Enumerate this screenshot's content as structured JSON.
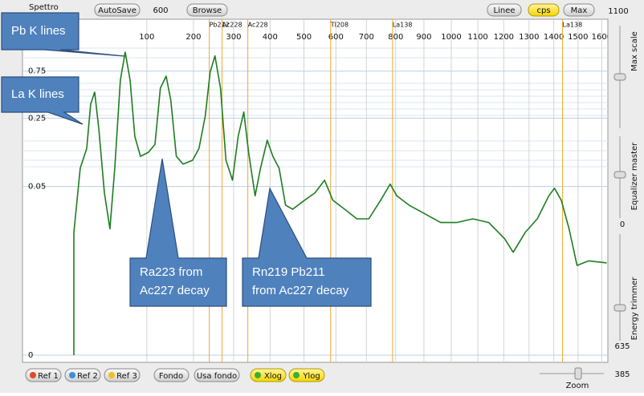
{
  "toolbar": {
    "title": "Spettro",
    "autosave": "AutoSave",
    "autosave_value": "600",
    "browse": "Browse",
    "lines": "Linee",
    "cps": "cps",
    "max": "Max",
    "max_value": "1100"
  },
  "bottom_bar": {
    "ref1": "Ref 1",
    "ref2": "Ref 2",
    "ref3": "Ref 3",
    "fondo": "Fondo",
    "usa_fondo": "Usa fondo",
    "xlog": "Xlog",
    "ylog": "Ylog",
    "zoom_value": "385",
    "zoom": "Zoom"
  },
  "side_panel": {
    "max_scale": "Max scale",
    "equalizer": "Equalizer master",
    "equalizer_value": "0",
    "energy_trimmer": "Energy trimmer",
    "trimmer_value": "635"
  },
  "callouts": [
    {
      "lines": [
        "Pb K lines"
      ]
    },
    {
      "lines": [
        "La K lines"
      ]
    },
    {
      "lines": [
        "Ra223 from",
        "Ac227 decay"
      ]
    },
    {
      "lines": [
        "Rn219 Pb211",
        "from Ac227 decay"
      ]
    }
  ],
  "chart_data": {
    "type": "line",
    "color": "#1e7d1e",
    "x": [
      0,
      0,
      3.3,
      8.8,
      12.8,
      17.3,
      22.2,
      29.5,
      37.3,
      44.5,
      53.3,
      61.1,
      69.4,
      77.8,
      88,
      103,
      116,
      127,
      139,
      149,
      161,
      176,
      198,
      213,
      228,
      240,
      252,
      266,
      280,
      297,
      312,
      327,
      340,
      358,
      373,
      392,
      408,
      426,
      445,
      466,
      502,
      534,
      564,
      590,
      628,
      668,
      708,
      748,
      781,
      804,
      847,
      903,
      961,
      1020,
      1081,
      1142,
      1204,
      1237,
      1285,
      1333,
      1380,
      1403,
      1431,
      1463,
      1496,
      1545,
      1621
    ],
    "values": [
      0,
      0.0165,
      0.077,
      0.123,
      0.346,
      0.459,
      0.197,
      0.043,
      0.018,
      0.077,
      0.608,
      1.17,
      0.608,
      0.163,
      0.102,
      0.112,
      0.135,
      0.504,
      0.667,
      0.38,
      0.102,
      0.085,
      0.093,
      0.123,
      0.262,
      0.732,
      1.07,
      0.504,
      0.093,
      0.058,
      0.163,
      0.288,
      0.112,
      0.04,
      0.077,
      0.149,
      0.102,
      0.077,
      0.032,
      0.029,
      0.036,
      0.043,
      0.058,
      0.036,
      0.029,
      0.023,
      0.023,
      0.036,
      0.053,
      0.04,
      0.032,
      0.026,
      0.021,
      0.021,
      0.023,
      0.021,
      0.014,
      0.01,
      0.0165,
      0.023,
      0.04,
      0.048,
      0.036,
      0.018,
      0.0071,
      0.008,
      0.0076
    ],
    "xlim": [
      0,
      1650
    ],
    "xticks": [
      100,
      200,
      300,
      400,
      500,
      600,
      700,
      800,
      900,
      1000,
      1100,
      1200,
      1300,
      1400,
      1500,
      1600
    ],
    "ylim": [
      0,
      2.47
    ],
    "yticks": [
      0,
      0.05,
      0.25,
      0.75
    ],
    "grid": true,
    "markers": [
      {
        "label": "Pb212",
        "x": 238
      },
      {
        "label": "Ac228",
        "x": 270
      },
      {
        "label": "Ac228",
        "x": 338
      },
      {
        "label": "Tl208",
        "x": 583
      },
      {
        "label": "La138",
        "x": 789
      },
      {
        "label": "La138",
        "x": 1436
      }
    ],
    "marker_color": "#f0a830"
  }
}
